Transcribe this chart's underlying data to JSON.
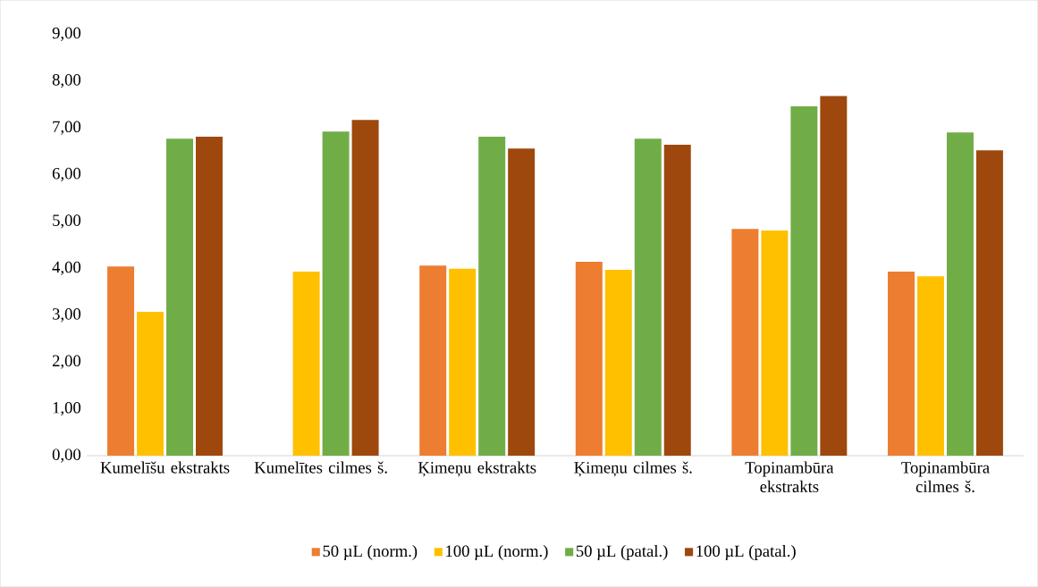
{
  "chart_data": {
    "type": "bar",
    "categories": [
      "Kumelīšu ekstrakts",
      "Kumelītes cilmes š.",
      "Ķimeņu ekstrakts",
      "Ķimeņu cilmes š.",
      "Topinambūra ekstrakts",
      "Topinambūra cilmes š."
    ],
    "series": [
      {
        "name": "50 µL (norm.)",
        "color": "#ed7d31",
        "values": [
          4.04,
          null,
          4.06,
          4.14,
          4.84,
          3.93
        ]
      },
      {
        "name": "100 µL (norm.)",
        "color": "#ffc000",
        "values": [
          3.07,
          3.93,
          3.99,
          3.97,
          4.81,
          3.83
        ]
      },
      {
        "name": "50 µL (patal.)",
        "color": "#70ad47",
        "values": [
          6.77,
          6.92,
          6.81,
          6.77,
          7.46,
          6.9
        ]
      },
      {
        "name": "100 µL (patal.)",
        "color": "#9e480e",
        "values": [
          6.81,
          7.17,
          6.56,
          6.64,
          7.68,
          6.52
        ]
      }
    ],
    "ylim": [
      0,
      9
    ],
    "yticks": [
      {
        "value": 0,
        "label": "0,00"
      },
      {
        "value": 1,
        "label": "1,00"
      },
      {
        "value": 2,
        "label": "2,00"
      },
      {
        "value": 3,
        "label": "3,00"
      },
      {
        "value": 4,
        "label": "4,00"
      },
      {
        "value": 5,
        "label": "5,00"
      },
      {
        "value": 6,
        "label": "6,00"
      },
      {
        "value": 7,
        "label": "7,00"
      },
      {
        "value": 8,
        "label": "8,00"
      },
      {
        "value": 9,
        "label": "9,00"
      }
    ],
    "grid": false,
    "legend": "bottom"
  }
}
